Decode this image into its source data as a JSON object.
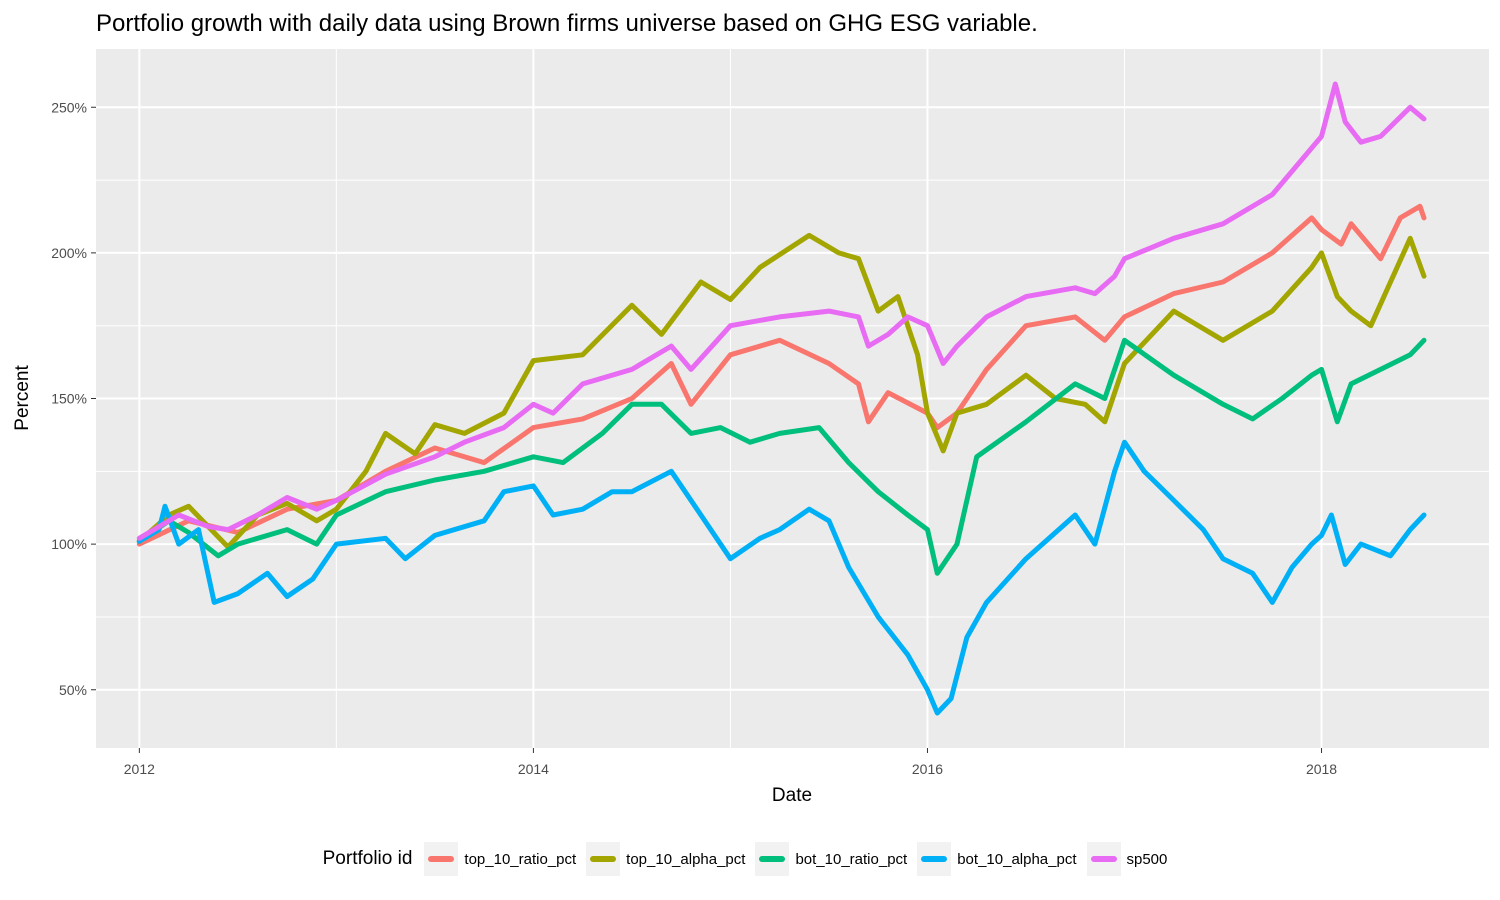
{
  "title": "Portfolio growth with daily data using Brown firms universe based on GHG ESG variable.",
  "chart_data": {
    "type": "line",
    "xlabel": "Date",
    "ylabel": "Percent",
    "xlim": [
      2011.78,
      2018.85
    ],
    "ylim": [
      30,
      270
    ],
    "x_ticks": [
      2012,
      2014,
      2016,
      2018
    ],
    "x_tick_labels": [
      "2012",
      "2014",
      "2016",
      "2018"
    ],
    "y_ticks": [
      50,
      100,
      150,
      200,
      250
    ],
    "y_tick_labels": [
      "50%",
      "100%",
      "150%",
      "200%",
      "250%"
    ],
    "grid": true,
    "legend_position": "bottom",
    "legend_title": "Portfolio id",
    "series": [
      {
        "name": "top_10_ratio_pct",
        "color": "#F8766D",
        "points": [
          [
            2012.0,
            100
          ],
          [
            2012.25,
            108
          ],
          [
            2012.5,
            104
          ],
          [
            2012.75,
            112
          ],
          [
            2013.0,
            115
          ],
          [
            2013.25,
            125
          ],
          [
            2013.5,
            133
          ],
          [
            2013.75,
            128
          ],
          [
            2014.0,
            140
          ],
          [
            2014.25,
            143
          ],
          [
            2014.5,
            150
          ],
          [
            2014.7,
            162
          ],
          [
            2014.8,
            148
          ],
          [
            2015.0,
            165
          ],
          [
            2015.25,
            170
          ],
          [
            2015.5,
            162
          ],
          [
            2015.65,
            155
          ],
          [
            2015.7,
            142
          ],
          [
            2015.8,
            152
          ],
          [
            2016.0,
            145
          ],
          [
            2016.05,
            140
          ],
          [
            2016.15,
            145
          ],
          [
            2016.3,
            160
          ],
          [
            2016.5,
            175
          ],
          [
            2016.75,
            178
          ],
          [
            2016.9,
            170
          ],
          [
            2017.0,
            178
          ],
          [
            2017.25,
            186
          ],
          [
            2017.5,
            190
          ],
          [
            2017.75,
            200
          ],
          [
            2017.95,
            212
          ],
          [
            2018.0,
            208
          ],
          [
            2018.1,
            203
          ],
          [
            2018.15,
            210
          ],
          [
            2018.3,
            198
          ],
          [
            2018.4,
            212
          ],
          [
            2018.5,
            216
          ],
          [
            2018.52,
            212
          ]
        ]
      },
      {
        "name": "top_10_alpha_pct",
        "color": "#A3A500",
        "points": [
          [
            2012.0,
            101
          ],
          [
            2012.15,
            110
          ],
          [
            2012.25,
            113
          ],
          [
            2012.45,
            99
          ],
          [
            2012.6,
            110
          ],
          [
            2012.75,
            114
          ],
          [
            2012.9,
            108
          ],
          [
            2013.0,
            112
          ],
          [
            2013.15,
            125
          ],
          [
            2013.25,
            138
          ],
          [
            2013.4,
            131
          ],
          [
            2013.5,
            141
          ],
          [
            2013.65,
            138
          ],
          [
            2013.85,
            145
          ],
          [
            2014.0,
            163
          ],
          [
            2014.25,
            165
          ],
          [
            2014.5,
            182
          ],
          [
            2014.65,
            172
          ],
          [
            2014.85,
            190
          ],
          [
            2015.0,
            184
          ],
          [
            2015.15,
            195
          ],
          [
            2015.4,
            206
          ],
          [
            2015.55,
            200
          ],
          [
            2015.65,
            198
          ],
          [
            2015.75,
            180
          ],
          [
            2015.85,
            185
          ],
          [
            2015.95,
            165
          ],
          [
            2016.0,
            145
          ],
          [
            2016.08,
            132
          ],
          [
            2016.15,
            145
          ],
          [
            2016.3,
            148
          ],
          [
            2016.5,
            158
          ],
          [
            2016.65,
            150
          ],
          [
            2016.8,
            148
          ],
          [
            2016.9,
            142
          ],
          [
            2017.0,
            162
          ],
          [
            2017.25,
            180
          ],
          [
            2017.5,
            170
          ],
          [
            2017.75,
            180
          ],
          [
            2017.95,
            195
          ],
          [
            2018.0,
            200
          ],
          [
            2018.08,
            185
          ],
          [
            2018.15,
            180
          ],
          [
            2018.25,
            175
          ],
          [
            2018.35,
            190
          ],
          [
            2018.45,
            205
          ],
          [
            2018.52,
            192
          ]
        ]
      },
      {
        "name": "bot_10_ratio_pct",
        "color": "#00BF7D",
        "points": [
          [
            2012.0,
            101
          ],
          [
            2012.15,
            108
          ],
          [
            2012.25,
            104
          ],
          [
            2012.4,
            96
          ],
          [
            2012.5,
            100
          ],
          [
            2012.75,
            105
          ],
          [
            2012.9,
            100
          ],
          [
            2013.0,
            110
          ],
          [
            2013.25,
            118
          ],
          [
            2013.5,
            122
          ],
          [
            2013.75,
            125
          ],
          [
            2014.0,
            130
          ],
          [
            2014.15,
            128
          ],
          [
            2014.35,
            138
          ],
          [
            2014.5,
            148
          ],
          [
            2014.65,
            148
          ],
          [
            2014.8,
            138
          ],
          [
            2014.95,
            140
          ],
          [
            2015.1,
            135
          ],
          [
            2015.25,
            138
          ],
          [
            2015.45,
            140
          ],
          [
            2015.6,
            128
          ],
          [
            2015.75,
            118
          ],
          [
            2015.9,
            110
          ],
          [
            2016.0,
            105
          ],
          [
            2016.05,
            90
          ],
          [
            2016.15,
            100
          ],
          [
            2016.25,
            130
          ],
          [
            2016.5,
            142
          ],
          [
            2016.75,
            155
          ],
          [
            2016.9,
            150
          ],
          [
            2017.0,
            170
          ],
          [
            2017.25,
            158
          ],
          [
            2017.5,
            148
          ],
          [
            2017.65,
            143
          ],
          [
            2017.8,
            150
          ],
          [
            2017.95,
            158
          ],
          [
            2018.0,
            160
          ],
          [
            2018.08,
            142
          ],
          [
            2018.15,
            155
          ],
          [
            2018.3,
            160
          ],
          [
            2018.45,
            165
          ],
          [
            2018.52,
            170
          ]
        ]
      },
      {
        "name": "bot_10_alpha_pct",
        "color": "#00B0F6",
        "points": [
          [
            2012.0,
            101
          ],
          [
            2012.1,
            105
          ],
          [
            2012.13,
            113
          ],
          [
            2012.2,
            100
          ],
          [
            2012.3,
            105
          ],
          [
            2012.38,
            80
          ],
          [
            2012.5,
            83
          ],
          [
            2012.65,
            90
          ],
          [
            2012.75,
            82
          ],
          [
            2012.88,
            88
          ],
          [
            2013.0,
            100
          ],
          [
            2013.25,
            102
          ],
          [
            2013.35,
            95
          ],
          [
            2013.5,
            103
          ],
          [
            2013.75,
            108
          ],
          [
            2013.85,
            118
          ],
          [
            2014.0,
            120
          ],
          [
            2014.1,
            110
          ],
          [
            2014.25,
            112
          ],
          [
            2014.4,
            118
          ],
          [
            2014.5,
            118
          ],
          [
            2014.7,
            125
          ],
          [
            2014.85,
            110
          ],
          [
            2015.0,
            95
          ],
          [
            2015.15,
            102
          ],
          [
            2015.25,
            105
          ],
          [
            2015.4,
            112
          ],
          [
            2015.5,
            108
          ],
          [
            2015.6,
            92
          ],
          [
            2015.75,
            75
          ],
          [
            2015.9,
            62
          ],
          [
            2016.0,
            50
          ],
          [
            2016.05,
            42
          ],
          [
            2016.12,
            47
          ],
          [
            2016.2,
            68
          ],
          [
            2016.3,
            80
          ],
          [
            2016.5,
            95
          ],
          [
            2016.75,
            110
          ],
          [
            2016.85,
            100
          ],
          [
            2016.95,
            125
          ],
          [
            2017.0,
            135
          ],
          [
            2017.1,
            125
          ],
          [
            2017.25,
            115
          ],
          [
            2017.4,
            105
          ],
          [
            2017.5,
            95
          ],
          [
            2017.65,
            90
          ],
          [
            2017.75,
            80
          ],
          [
            2017.85,
            92
          ],
          [
            2017.95,
            100
          ],
          [
            2018.0,
            103
          ],
          [
            2018.05,
            110
          ],
          [
            2018.12,
            93
          ],
          [
            2018.2,
            100
          ],
          [
            2018.35,
            96
          ],
          [
            2018.45,
            105
          ],
          [
            2018.52,
            110
          ]
        ]
      },
      {
        "name": "sp500",
        "color": "#E76BF3",
        "points": [
          [
            2012.0,
            102
          ],
          [
            2012.2,
            110
          ],
          [
            2012.35,
            106
          ],
          [
            2012.45,
            105
          ],
          [
            2012.6,
            110
          ],
          [
            2012.75,
            116
          ],
          [
            2012.9,
            112
          ],
          [
            2013.0,
            115
          ],
          [
            2013.25,
            124
          ],
          [
            2013.5,
            130
          ],
          [
            2013.65,
            135
          ],
          [
            2013.85,
            140
          ],
          [
            2014.0,
            148
          ],
          [
            2014.1,
            145
          ],
          [
            2014.25,
            155
          ],
          [
            2014.5,
            160
          ],
          [
            2014.7,
            168
          ],
          [
            2014.8,
            160
          ],
          [
            2015.0,
            175
          ],
          [
            2015.25,
            178
          ],
          [
            2015.5,
            180
          ],
          [
            2015.65,
            178
          ],
          [
            2015.7,
            168
          ],
          [
            2015.8,
            172
          ],
          [
            2015.9,
            178
          ],
          [
            2016.0,
            175
          ],
          [
            2016.08,
            162
          ],
          [
            2016.15,
            168
          ],
          [
            2016.3,
            178
          ],
          [
            2016.5,
            185
          ],
          [
            2016.75,
            188
          ],
          [
            2016.85,
            186
          ],
          [
            2016.95,
            192
          ],
          [
            2017.0,
            198
          ],
          [
            2017.25,
            205
          ],
          [
            2017.5,
            210
          ],
          [
            2017.75,
            220
          ],
          [
            2018.0,
            240
          ],
          [
            2018.07,
            258
          ],
          [
            2018.12,
            245
          ],
          [
            2018.2,
            238
          ],
          [
            2018.3,
            240
          ],
          [
            2018.45,
            250
          ],
          [
            2018.52,
            246
          ]
        ]
      }
    ]
  }
}
